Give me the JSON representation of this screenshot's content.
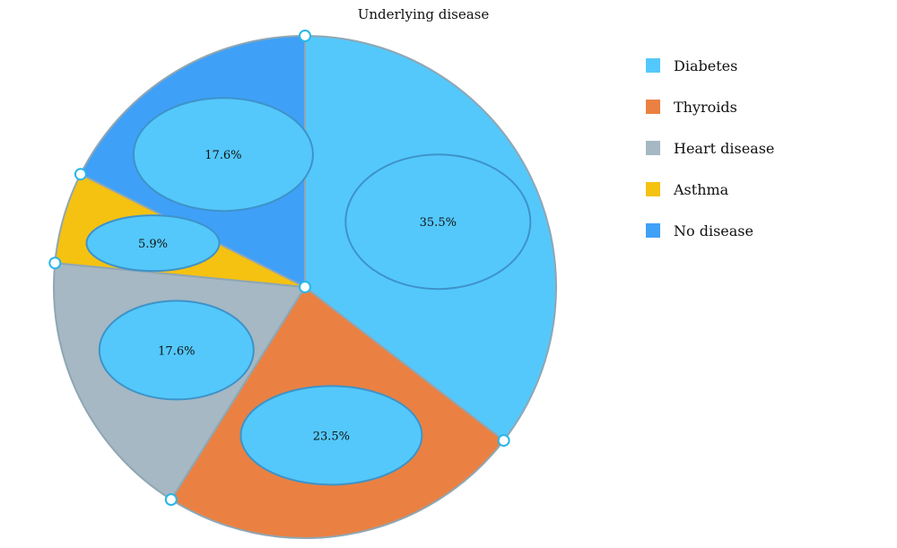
{
  "chart_data": {
    "type": "pie",
    "title": "Underlying disease",
    "categories": [
      "Diabetes",
      "Thyroids",
      "Heart disease",
      "Asthma",
      "No disease"
    ],
    "values": [
      35.5,
      23.5,
      17.6,
      5.9,
      17.6
    ],
    "labels": [
      "35.5%",
      "23.5%",
      "17.6%",
      "5.9%",
      "17.6%"
    ],
    "colors": [
      "#54c8fb",
      "#ea8142",
      "#a5b8c3",
      "#f5c211",
      "#3fa0f8"
    ],
    "label_bubble_color": "#54c8fb",
    "legend_position": "right"
  }
}
